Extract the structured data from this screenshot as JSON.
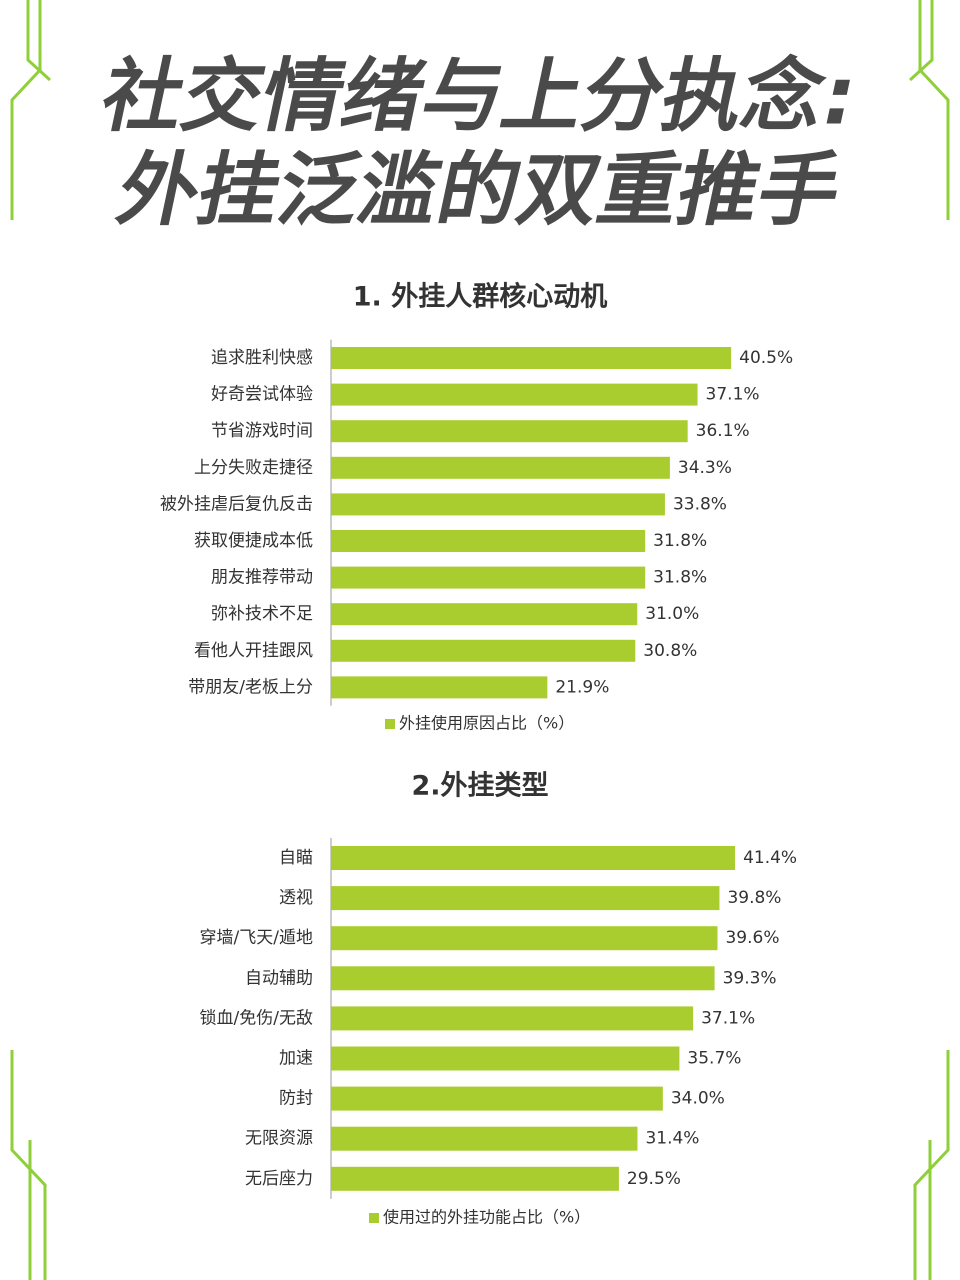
{
  "header": {
    "title_lines": [
      "社交情绪与上分执念:",
      "外挂泛滥的双重推手"
    ]
  },
  "chart_data": [
    {
      "type": "bar",
      "title": "1. 外挂人群核心动机",
      "categories": [
        "追求胜利快感",
        "好奇尝试体验",
        "节省游戏时间",
        "上分失败走捷径",
        "被外挂虐后复仇反击",
        "获取便捷成本低",
        "朋友推荐带动",
        "弥补技术不足",
        "看他人开挂跟风",
        "带朋友/老板上分"
      ],
      "series": [
        {
          "name": "外挂使用原因占比（%）",
          "color": "#a9cd2f",
          "values": [
            40.5,
            37.1,
            36.1,
            34.3,
            33.8,
            31.8,
            31.8,
            31.0,
            30.8,
            21.9
          ],
          "value_labels": [
            "40.5%",
            "37.1%",
            "36.1%",
            "34.3%",
            "33.8%",
            "31.8%",
            "31.8%",
            "31.0%",
            "30.8%",
            "21.9%"
          ]
        }
      ]
    },
    {
      "type": "bar",
      "title": "2.外挂类型",
      "categories": [
        "自瞄",
        "透视",
        "穿墙/飞天/遁地",
        "自动辅助",
        "锁血/免伤/无敌",
        "加速",
        "防封",
        "无限资源",
        "无后座力"
      ],
      "series": [
        {
          "name": "使用过的外挂功能占比（%）",
          "color": "#a9cd2f",
          "values": [
            41.4,
            39.8,
            39.6,
            39.3,
            37.1,
            35.7,
            34.0,
            31.4,
            29.5
          ],
          "value_labels": [
            "41.4%",
            "39.8%",
            "39.6%",
            "39.3%",
            "37.1%",
            "35.7%",
            "34.0%",
            "31.4%",
            "29.5%"
          ]
        }
      ]
    }
  ]
}
